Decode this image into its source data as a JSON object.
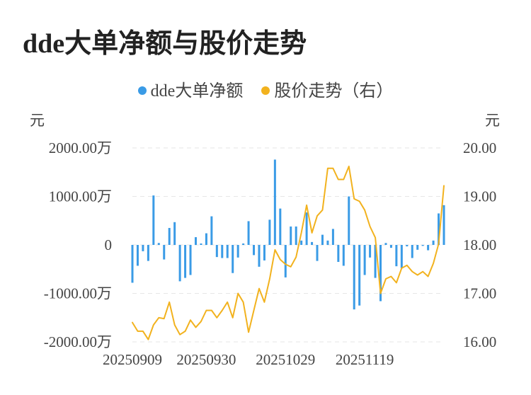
{
  "title": "dde大单净额与股价走势",
  "legend": [
    {
      "label": "dde大单净额",
      "color": "#3a9be6"
    },
    {
      "label": "股价走势（右）",
      "color": "#f2b21e"
    }
  ],
  "colors": {
    "bar": "#3a9be6",
    "line": "#f2b21e",
    "grid": "#e6e6e6"
  },
  "chart_data": {
    "type": "bar+line",
    "title": "dde大单净额与股价走势",
    "left_unit": "元",
    "right_unit": "元",
    "left_ylim": [
      -2000,
      2000
    ],
    "right_ylim": [
      16,
      20
    ],
    "left_ticks": [
      "2000.00万",
      "1000.00万",
      "0",
      "-1000.00万",
      "-2000.00万"
    ],
    "right_ticks": [
      "20.00",
      "19.00",
      "18.00",
      "17.00",
      "16.00"
    ],
    "x_ticks": [
      {
        "label": "20250909",
        "index": 0
      },
      {
        "label": "20250930",
        "index": 14
      },
      {
        "label": "20251029",
        "index": 29
      },
      {
        "label": "20251119",
        "index": 44
      }
    ],
    "series": [
      {
        "name": "dde大单净额",
        "type": "bar",
        "values": [
          -780,
          -430,
          -130,
          -330,
          1020,
          40,
          -300,
          350,
          470,
          -750,
          -680,
          -620,
          160,
          30,
          240,
          590,
          -250,
          -270,
          -270,
          -580,
          -260,
          30,
          490,
          -210,
          -450,
          -320,
          520,
          1760,
          750,
          -670,
          380,
          380,
          90,
          670,
          60,
          -330,
          210,
          90,
          330,
          -350,
          -430,
          1000,
          -1330,
          -1250,
          -620,
          -260,
          -680,
          -1160,
          40,
          -60,
          -440,
          -480,
          -30,
          -270,
          -100,
          -20,
          -110,
          90,
          650,
          820
        ]
      },
      {
        "name": "股价走势（右）",
        "type": "line",
        "values": [
          16.4,
          16.22,
          16.22,
          16.05,
          16.35,
          16.5,
          16.48,
          16.82,
          16.35,
          16.15,
          16.22,
          16.45,
          16.3,
          16.42,
          16.65,
          16.65,
          16.5,
          16.65,
          16.82,
          16.5,
          17.0,
          16.82,
          16.2,
          16.65,
          17.1,
          16.82,
          17.3,
          17.9,
          17.7,
          17.6,
          17.55,
          17.75,
          18.25,
          18.82,
          18.25,
          18.6,
          18.72,
          19.58,
          19.58,
          19.35,
          19.35,
          19.62,
          18.95,
          18.9,
          18.72,
          18.38,
          18.15,
          17.0,
          17.3,
          17.35,
          17.22,
          17.52,
          17.58,
          17.45,
          17.38,
          17.45,
          17.35,
          17.62,
          18.02,
          19.22
        ]
      }
    ],
    "grid": true,
    "legend_position": "top"
  }
}
